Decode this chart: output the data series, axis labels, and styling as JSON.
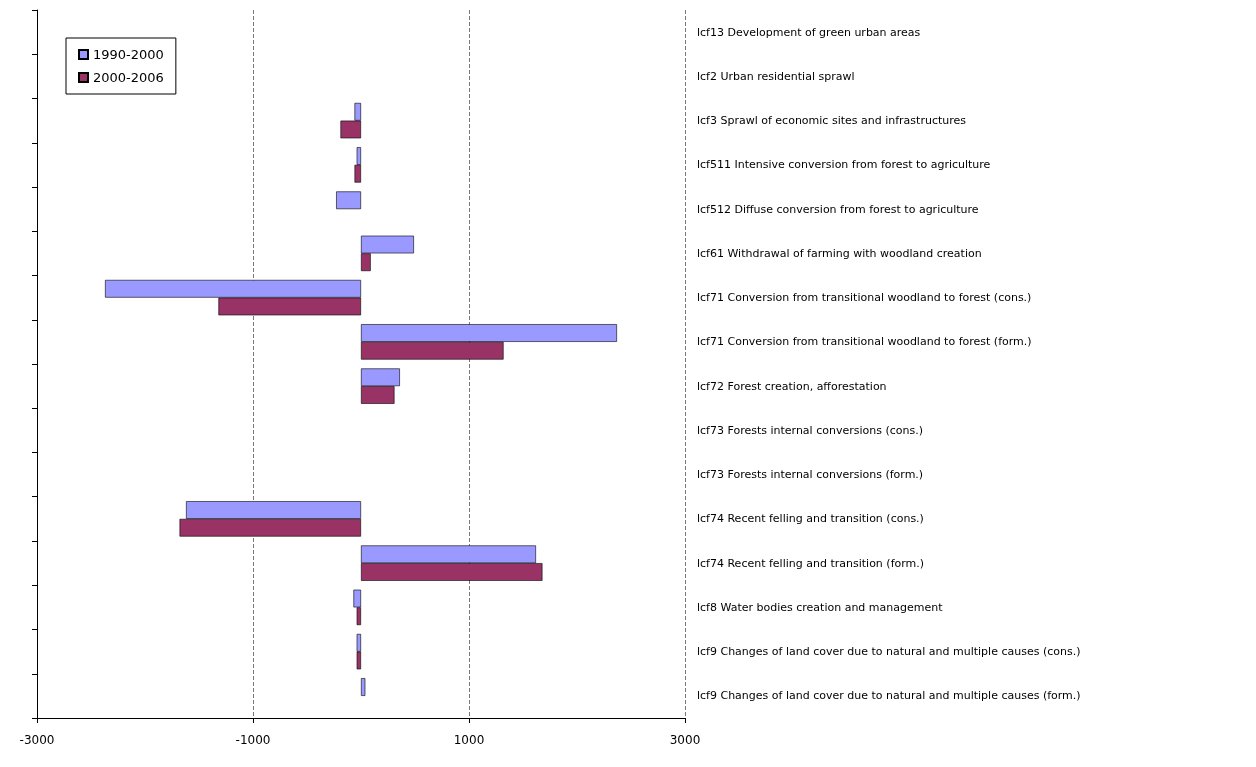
{
  "chart_data": {
    "type": "bar",
    "orientation": "horizontal",
    "categories": [
      "lcf13 Development of green urban areas",
      "lcf2 Urban residential sprawl",
      "lcf3 Sprawl of economic sites and infrastructures",
      "lcf511 Intensive conversion from forest to agriculture",
      "lcf512 Diffuse conversion from forest to agriculture",
      "lcf61 Withdrawal of farming with woodland creation",
      "lcf71 Conversion from transitional woodland to forest (cons.)",
      "lcf71 Conversion from transitional woodland to forest (form.)",
      "lcf72 Forest creation, afforestation",
      "lcf73 Forests internal conversions (cons.)",
      "lcf73 Forests internal conversions (form.)",
      "lcf74 Recent felling and transition (cons.)",
      "lcf74 Recent felling and transition (form.)",
      "lcf8 Water bodies creation and management",
      "lcf9 Changes of land cover due to natural and multiple causes (cons.)",
      "lcf9 Changes of land cover due to natural and multiple causes (form.)"
    ],
    "series": [
      {
        "name": "1990-2000",
        "color": "#9999ff",
        "values": [
          null,
          null,
          -60,
          -40,
          -230,
          490,
          -2370,
          2370,
          360,
          null,
          null,
          -1620,
          1620,
          -70,
          -40,
          40
        ]
      },
      {
        "name": "2000-2006",
        "color": "#993366",
        "values": [
          null,
          null,
          -190,
          -60,
          null,
          90,
          -1320,
          1320,
          310,
          null,
          null,
          -1680,
          1680,
          -40,
          -40,
          null
        ]
      }
    ],
    "xlim": [
      -3000,
      3000
    ],
    "xticks": [
      -3000,
      -1000,
      1000,
      3000
    ],
    "grid": "x",
    "legend": "top left"
  }
}
